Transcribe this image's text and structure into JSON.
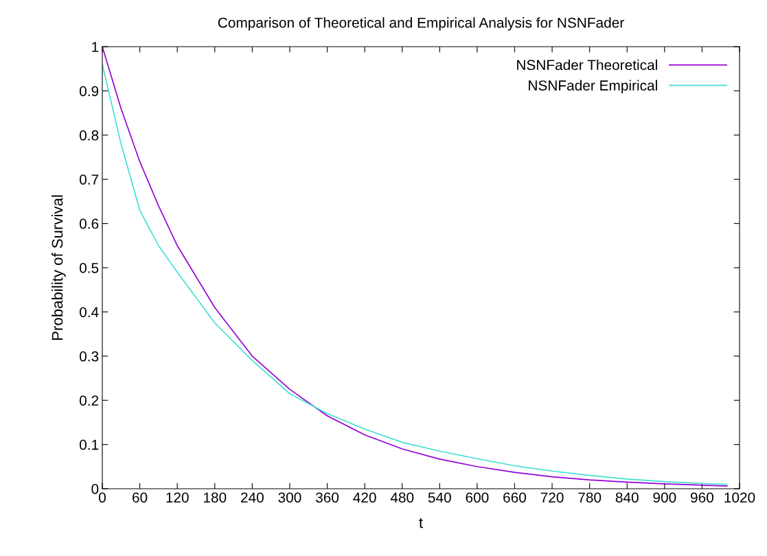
{
  "chart_data": {
    "type": "line",
    "title": "Comparison of Theoretical and Empirical Analysis for NSNFader",
    "xlabel": "t",
    "ylabel": "Probability of Survival",
    "xlim": [
      0,
      1020
    ],
    "xticks": [
      0,
      60,
      120,
      180,
      240,
      300,
      360,
      420,
      480,
      540,
      600,
      660,
      720,
      780,
      840,
      900,
      960,
      1020
    ],
    "ylim": [
      0,
      1
    ],
    "yticks": [
      0,
      0.1,
      0.2,
      0.3,
      0.4,
      0.5,
      0.6,
      0.7,
      0.8,
      0.9,
      1
    ],
    "legend": "top right",
    "grid": false,
    "marker": "none",
    "line_style": "solid",
    "series": [
      {
        "name": "NSNFader Theoretical",
        "color": "#9400d3",
        "x": [
          0,
          30,
          60,
          90,
          120,
          180,
          240,
          300,
          360,
          420,
          480,
          540,
          600,
          660,
          720,
          780,
          840,
          900,
          960,
          1000
        ],
        "values": [
          1,
          0.86,
          0.74,
          0.64,
          0.55,
          0.41,
          0.3,
          0.225,
          0.165,
          0.122,
          0.09,
          0.067,
          0.05,
          0.037,
          0.027,
          0.02,
          0.015,
          0.011,
          0.008,
          0.006
        ]
      },
      {
        "name": "NSNFader Empirical",
        "color": "#40e0d0",
        "x": [
          0,
          30,
          60,
          90,
          120,
          180,
          240,
          300,
          360,
          420,
          480,
          540,
          600,
          660,
          720,
          780,
          840,
          900,
          960,
          1000
        ],
        "values": [
          0.96,
          0.78,
          0.63,
          0.55,
          0.49,
          0.375,
          0.29,
          0.215,
          0.17,
          0.135,
          0.105,
          0.085,
          0.068,
          0.052,
          0.04,
          0.03,
          0.022,
          0.016,
          0.012,
          0.01
        ]
      }
    ]
  }
}
